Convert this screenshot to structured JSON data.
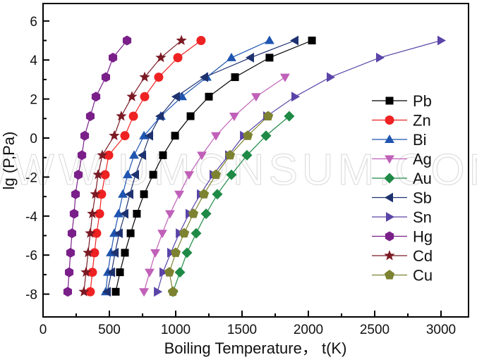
{
  "chart_data": {
    "type": "line",
    "title": "",
    "xlabel": "Boiling Temperature， t(K)",
    "ylabel": "lg (P,Pa)",
    "xlim": [
      0,
      3230
    ],
    "ylim": [
      -10.1,
      7
    ],
    "xticks": [
      0,
      500,
      1000,
      1500,
      2000,
      2500,
      3000
    ],
    "xticks_minor": [
      250,
      750,
      1250,
      1750,
      2250,
      2750
    ],
    "yticks": [
      -8,
      -6,
      -4,
      -2,
      0,
      2,
      4,
      6
    ],
    "yticks_minor": [
      -7,
      -5,
      -3,
      -1,
      1,
      3,
      5
    ],
    "grid": false,
    "legend_position": "right-center",
    "watermark": "WWW.UMONSUM.COM",
    "y_levels": [
      5.0,
      4.12,
      3.12,
      2.12,
      1.12,
      0.12,
      -0.88,
      -1.88,
      -2.88,
      -3.88,
      -4.88,
      -5.88,
      -6.88,
      -7.88
    ],
    "series": [
      {
        "name": "Pb",
        "color": "#000000",
        "marker": "square",
        "x": [
          2027,
          1707,
          1447,
          1250,
          1112,
          995,
          904,
          830,
          761,
          707,
          660,
          617,
          580,
          548
        ],
        "y": [
          5.0,
          4.12,
          3.12,
          2.12,
          1.12,
          0.12,
          -0.88,
          -1.88,
          -2.88,
          -3.88,
          -4.88,
          -5.88,
          -6.88,
          -7.88
        ]
      },
      {
        "name": "Zn",
        "color": "#ee2222",
        "marker": "circle",
        "x": [
          1191,
          1016,
          872,
          766,
          681,
          617,
          495,
          468,
          441,
          426,
          404,
          388,
          372,
          356
        ],
        "y": [
          5.0,
          4.12,
          3.12,
          2.12,
          1.12,
          0.12,
          -0.88,
          -1.88,
          -2.88,
          -3.88,
          -4.88,
          -5.88,
          -6.88,
          -7.88
        ]
      },
      {
        "name": "Bi",
        "color": "#1f55b0",
        "marker": "triangle-up",
        "x": [
          1707,
          1420,
          1234,
          1048,
          888,
          761,
          686,
          638,
          601,
          569,
          537,
          511,
          489,
          473
        ],
        "y": [
          5.0,
          4.12,
          3.12,
          2.12,
          1.12,
          0.12,
          -0.88,
          -1.88,
          -2.88,
          -3.88,
          -4.88,
          -5.88,
          -6.88,
          -7.88
        ]
      },
      {
        "name": "Ag",
        "color": "#c060b8",
        "marker": "triangle-down",
        "x": [
          1824,
          1606,
          1441,
          1303,
          1197,
          1101,
          1027,
          957,
          899,
          846,
          803,
          761
        ],
        "y": [
          3.12,
          2.12,
          1.12,
          0.12,
          -0.88,
          -1.88,
          -2.88,
          -3.88,
          -4.88,
          -5.88,
          -6.88,
          -7.88
        ]
      },
      {
        "name": "Au",
        "color": "#1e8a45",
        "marker": "diamond",
        "x": [
          1856,
          1681,
          1537,
          1420,
          1314,
          1229,
          1154,
          1085,
          1032,
          980
        ],
        "y": [
          1.12,
          0.12,
          -0.88,
          -1.88,
          -2.88,
          -3.88,
          -4.88,
          -5.88,
          -6.88,
          -7.88
        ]
      },
      {
        "name": "Sb",
        "color": "#1e3270",
        "marker": "triangle-left",
        "x": [
          1899,
          1564,
          1218,
          1005,
          883,
          803,
          750,
          697,
          654,
          617,
          574,
          543,
          516,
          484
        ],
        "y": [
          5.0,
          4.12,
          3.12,
          2.12,
          1.12,
          0.12,
          -0.88,
          -1.88,
          -2.88,
          -3.88,
          -4.88,
          -5.88,
          -6.88,
          -7.88
        ]
      },
      {
        "name": "Sn",
        "color": "#5a44a8",
        "marker": "triangle-right",
        "x": [
          3000,
          2537,
          2165,
          1899,
          1686,
          1511,
          1399,
          1282,
          1186,
          1101,
          1027,
          963,
          904,
          862
        ],
        "y": [
          5.0,
          4.12,
          3.12,
          2.12,
          1.12,
          0.12,
          -0.88,
          -1.88,
          -2.88,
          -3.88,
          -4.88,
          -5.88,
          -6.88,
          -7.88
        ]
      },
      {
        "name": "Hg",
        "color": "#7a1f8a",
        "marker": "hexagon",
        "x": [
          633,
          527,
          473,
          399,
          356,
          314,
          293,
          266,
          245,
          234,
          218,
          207,
          197,
          186
        ],
        "y": [
          5.0,
          4.12,
          3.12,
          2.12,
          1.12,
          0.12,
          -0.88,
          -1.88,
          -2.88,
          -3.88,
          -4.88,
          -5.88,
          -6.88,
          -7.88
        ]
      },
      {
        "name": "Cd",
        "color": "#7a1a24",
        "marker": "star",
        "x": [
          1043,
          888,
          766,
          670,
          590,
          537,
          447,
          415,
          394,
          372,
          356,
          340,
          324,
          308
        ],
        "y": [
          5.0,
          4.12,
          3.12,
          2.12,
          1.12,
          0.12,
          -0.88,
          -1.88,
          -2.88,
          -3.88,
          -4.88,
          -5.88,
          -6.88,
          -7.88
        ]
      },
      {
        "name": "Cu",
        "color": "#7d8230",
        "marker": "pentagon",
        "x": [
          1697,
          1543,
          1410,
          1303,
          1213,
          1133,
          1064,
          1000,
          952,
          979
        ],
        "y": [
          1.12,
          0.12,
          -0.88,
          -1.88,
          -2.88,
          -3.88,
          -4.88,
          -5.88,
          -6.88,
          -7.88
        ]
      }
    ]
  },
  "axes": {
    "x_title": "Boiling Temperature， t(K)",
    "y_title": "lg (P,Pa)"
  }
}
